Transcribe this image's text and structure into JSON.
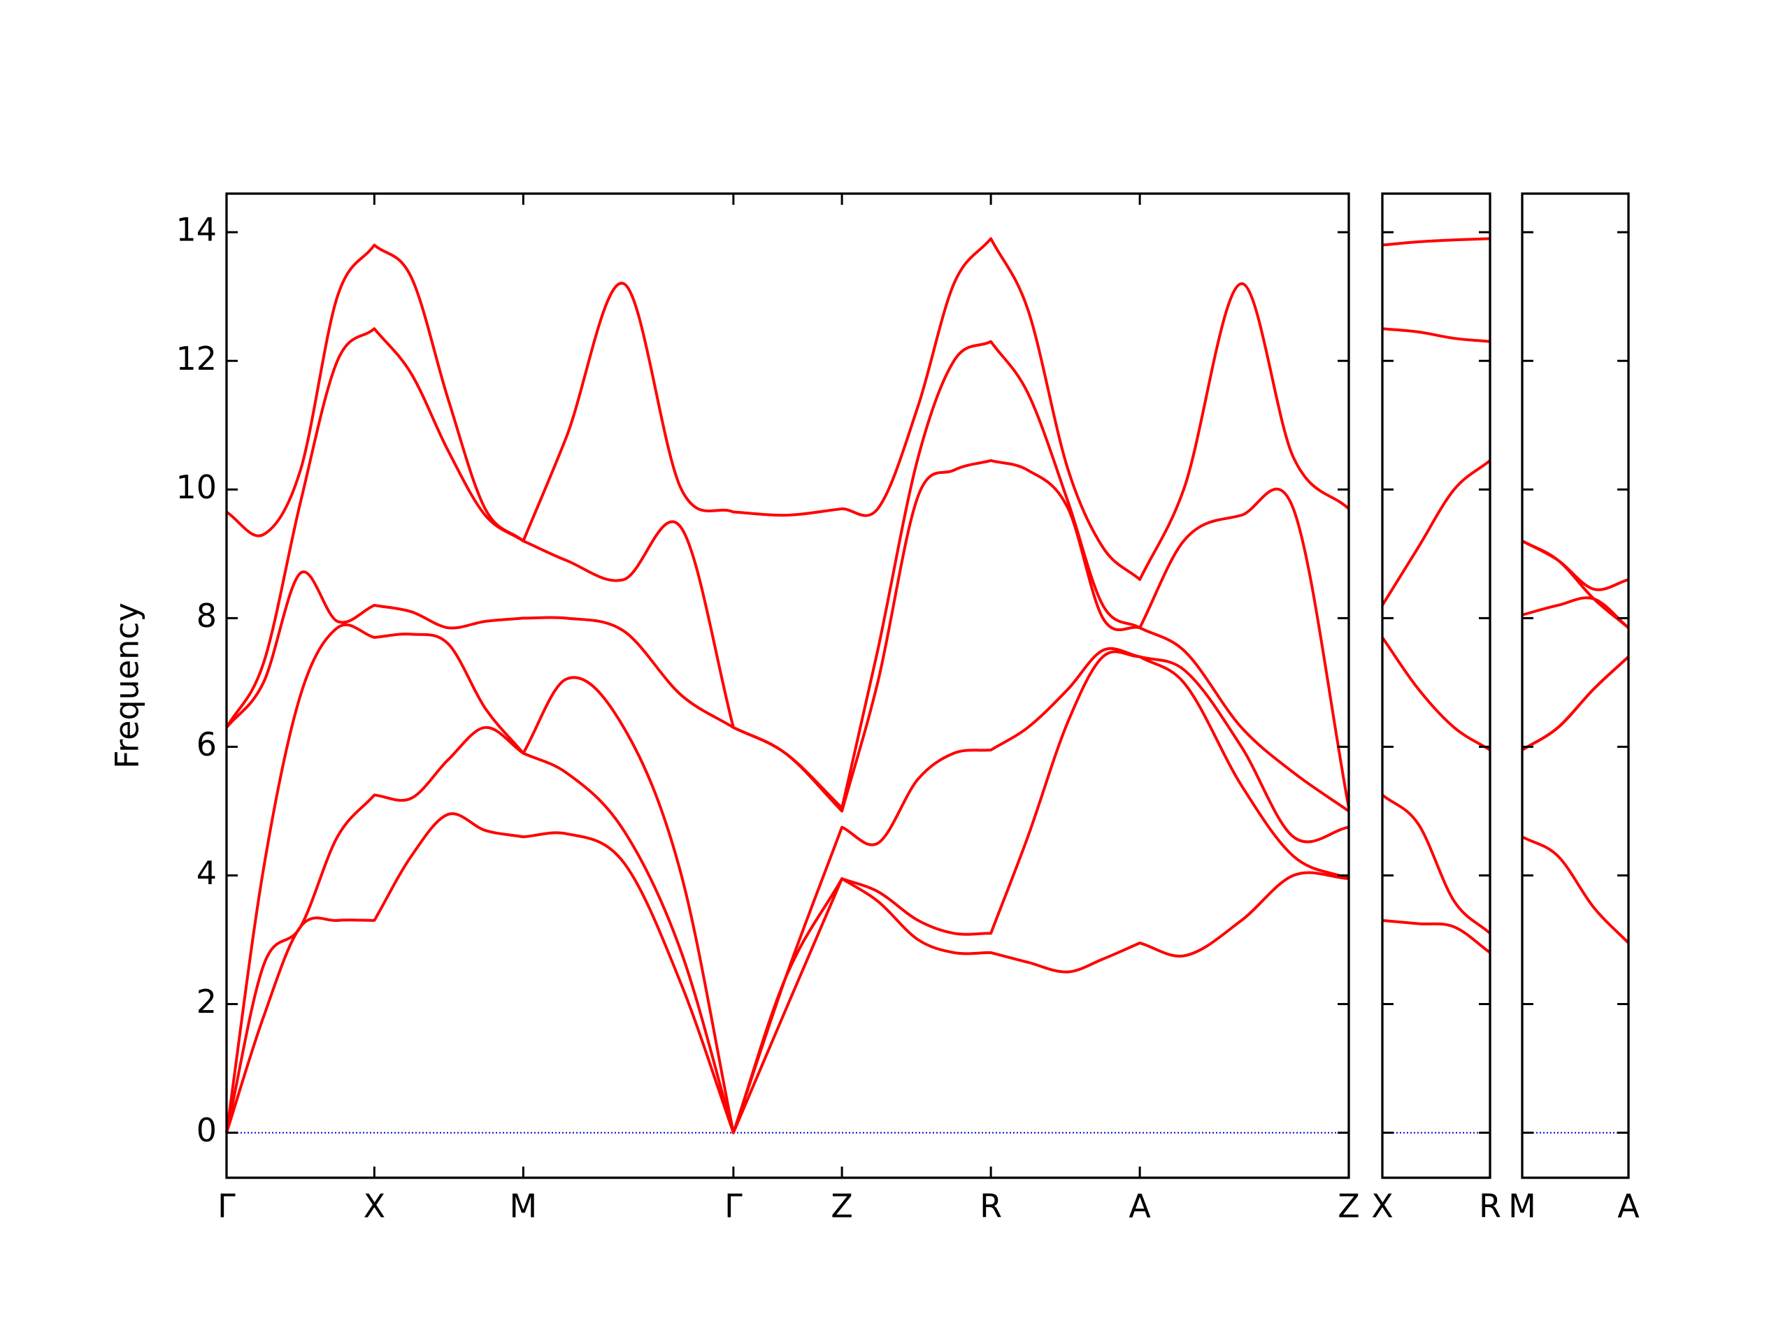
{
  "chart_data": [
    {
      "type": "line",
      "ylabel": "Frequency",
      "x": [
        0,
        0.32,
        0.64,
        0.96,
        1.28,
        1.6,
        1.92,
        2.24,
        2.57,
        2.94,
        3.44,
        3.94,
        4.39,
        4.84,
        5.33,
        5.64,
        5.99,
        6.3,
        6.62,
        6.94,
        7.29,
        7.59,
        7.91,
        8.29,
        8.79,
        9.24,
        9.72
      ],
      "series": [
        {
          "color": "#ff0000",
          "values": [
            0,
            1.8,
            3.2,
            3.3,
            3.3,
            4.3,
            4.95,
            4.7,
            4.6,
            4.65,
            4.2,
            2.3,
            0,
            1.9,
            3.95,
            3.6,
            3.0,
            2.8,
            2.8,
            2.65,
            2.5,
            2.7,
            2.95,
            2.75,
            3.3,
            4.0,
            3.95
          ]
        },
        {
          "color": "#ff0000",
          "values": [
            0,
            2.6,
            3.2,
            4.6,
            5.25,
            5.2,
            5.8,
            6.3,
            5.9,
            5.6,
            4.7,
            2.8,
            0,
            2.4,
            3.95,
            3.75,
            3.3,
            3.1,
            3.1,
            4.6,
            6.4,
            7.4,
            7.4,
            7.0,
            5.4,
            4.3,
            3.95
          ]
        },
        {
          "color": "#ff0000",
          "values": [
            0,
            4.1,
            6.8,
            7.85,
            7.7,
            7.75,
            7.6,
            6.6,
            5.9,
            7.05,
            6.3,
            4.0,
            0,
            2.4,
            4.75,
            4.5,
            5.5,
            5.9,
            5.95,
            6.3,
            6.9,
            7.5,
            7.4,
            7.2,
            6.0,
            4.6,
            4.75
          ]
        },
        {
          "color": "#ff0000",
          "values": [
            6.3,
            7.0,
            8.7,
            7.95,
            8.2,
            8.1,
            7.85,
            7.95,
            8.0,
            8.0,
            7.8,
            6.8,
            6.3,
            5.9,
            5.0,
            7.0,
            9.9,
            10.3,
            10.45,
            10.3,
            9.7,
            8.0,
            7.85,
            7.5,
            6.3,
            5.6,
            5.0
          ]
        },
        {
          "color": "#ff0000",
          "values": [
            6.3,
            7.3,
            9.8,
            12.0,
            12.5,
            11.8,
            10.6,
            9.6,
            9.2,
            8.9,
            8.6,
            9.4,
            6.3,
            5.9,
            5.05,
            7.5,
            10.5,
            12.0,
            12.3,
            11.5,
            9.8,
            8.2,
            7.85,
            9.2,
            9.6,
            9.7,
            5.05
          ]
        },
        {
          "color": "#ff0000",
          "values": [
            9.65,
            9.3,
            10.3,
            13.0,
            13.8,
            13.3,
            11.4,
            9.7,
            9.2,
            10.8,
            13.2,
            10.0,
            9.65,
            9.6,
            9.7,
            9.7,
            11.3,
            13.2,
            13.9,
            12.8,
            10.3,
            9.1,
            8.6,
            10.0,
            13.2,
            10.5,
            9.7
          ]
        }
      ],
      "xlim": [
        0,
        9.72
      ],
      "xticks": [
        {
          "value": 0,
          "label": "Γ"
        },
        {
          "value": 1.28,
          "label": "X"
        },
        {
          "value": 2.57,
          "label": "M"
        },
        {
          "value": 4.39,
          "label": "Γ"
        },
        {
          "value": 5.33,
          "label": "Z"
        },
        {
          "value": 6.62,
          "label": "R"
        },
        {
          "value": 7.91,
          "label": "A"
        },
        {
          "value": 9.72,
          "label": "Z"
        }
      ],
      "ylim": [
        -0.7,
        14.6
      ],
      "yticks": [
        0,
        2,
        4,
        6,
        8,
        10,
        12,
        14
      ],
      "ytick_labels": true,
      "zero_line": {
        "value": 0,
        "color": "#0000cc"
      }
    },
    {
      "type": "line",
      "x": [
        0,
        0.31,
        0.62,
        0.93
      ],
      "series": [
        {
          "color": "#ff0000",
          "values": [
            3.3,
            3.25,
            3.2,
            2.8
          ]
        },
        {
          "color": "#ff0000",
          "values": [
            5.25,
            4.8,
            3.6,
            3.1
          ]
        },
        {
          "color": "#ff0000",
          "values": [
            7.7,
            6.9,
            6.3,
            5.95
          ]
        },
        {
          "color": "#ff0000",
          "values": [
            8.2,
            9.1,
            10.0,
            10.45
          ]
        },
        {
          "color": "#ff0000",
          "values": [
            12.5,
            12.45,
            12.35,
            12.3
          ]
        },
        {
          "color": "#ff0000",
          "values": [
            13.8,
            13.85,
            13.88,
            13.9
          ]
        }
      ],
      "xlim": [
        0,
        0.93
      ],
      "xticks": [
        {
          "value": 0,
          "label": "X"
        },
        {
          "value": 0.93,
          "label": "R"
        }
      ],
      "ylim": [
        -0.7,
        14.6
      ],
      "yticks": [
        0,
        2,
        4,
        6,
        8,
        10,
        12,
        14
      ],
      "ytick_labels": false,
      "zero_line": {
        "value": 0,
        "color": "#0000cc"
      }
    },
    {
      "type": "line",
      "x": [
        0,
        0.31,
        0.62,
        0.92
      ],
      "series": [
        {
          "color": "#ff0000",
          "values": [
            4.6,
            4.3,
            3.5,
            2.95
          ]
        },
        {
          "color": "#ff0000",
          "values": [
            5.95,
            6.3,
            6.9,
            7.4
          ]
        },
        {
          "color": "#ff0000",
          "values": [
            5.95,
            6.3,
            6.9,
            7.4
          ]
        },
        {
          "color": "#ff0000",
          "values": [
            8.05,
            8.2,
            8.3,
            7.85
          ]
        },
        {
          "color": "#ff0000",
          "values": [
            9.2,
            8.9,
            8.3,
            7.85
          ]
        },
        {
          "color": "#ff0000",
          "values": [
            9.2,
            8.9,
            8.45,
            8.6
          ]
        }
      ],
      "xlim": [
        0,
        0.92
      ],
      "xticks": [
        {
          "value": 0,
          "label": "M"
        },
        {
          "value": 0.92,
          "label": "A"
        }
      ],
      "ylim": [
        -0.7,
        14.6
      ],
      "yticks": [
        0,
        2,
        4,
        6,
        8,
        10,
        12,
        14
      ],
      "ytick_labels": false,
      "zero_line": {
        "value": 0,
        "color": "#0000cc"
      }
    }
  ]
}
